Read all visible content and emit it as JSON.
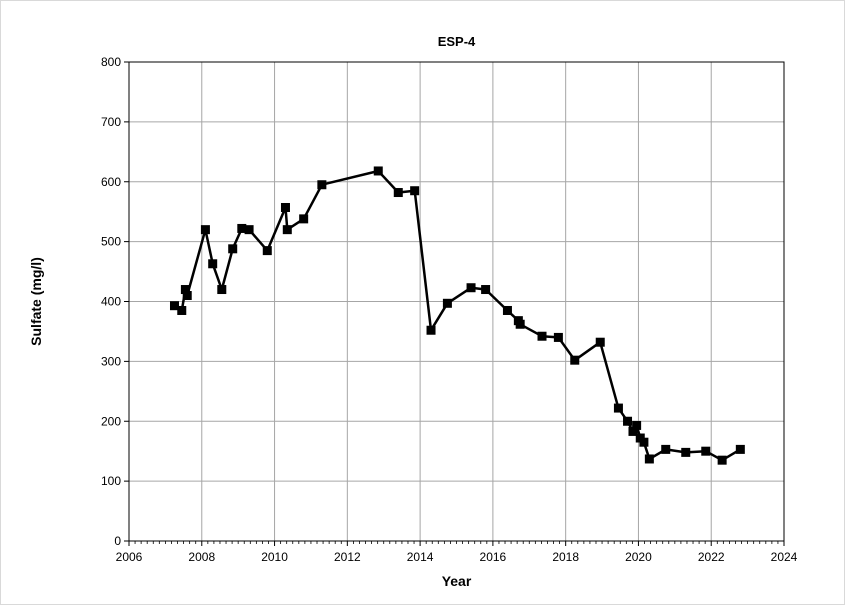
{
  "chart_data": {
    "type": "line",
    "title": "ESP-4",
    "xlabel": "Year",
    "ylabel": "Sulfate (mg/l)",
    "xlim": [
      2006,
      2024
    ],
    "ylim": [
      0,
      800
    ],
    "x_ticks": [
      "2006",
      "2008",
      "2010",
      "2012",
      "2014",
      "2016",
      "2018",
      "2020",
      "2022",
      "2024"
    ],
    "y_ticks": [
      "0",
      "100",
      "200",
      "300",
      "400",
      "500",
      "600",
      "700",
      "800"
    ],
    "grid": true,
    "legend": "none",
    "colors": {
      "line": "#000000",
      "marker": "#000000",
      "grid": "#a6a6a6",
      "axis": "#000000"
    },
    "series": [
      {
        "points": [
          [
            2007.25,
            393
          ],
          [
            2007.45,
            385
          ],
          [
            2007.55,
            420
          ],
          [
            2007.6,
            410
          ],
          [
            2008.1,
            520
          ],
          [
            2008.3,
            463
          ],
          [
            2008.55,
            420
          ],
          [
            2008.85,
            488
          ],
          [
            2009.1,
            522
          ],
          [
            2009.3,
            520
          ],
          [
            2009.8,
            485
          ],
          [
            2010.3,
            557
          ],
          [
            2010.35,
            520
          ],
          [
            2010.8,
            538
          ],
          [
            2011.3,
            595
          ],
          [
            2012.85,
            618
          ],
          [
            2013.4,
            582
          ],
          [
            2013.85,
            585
          ],
          [
            2014.3,
            352
          ],
          [
            2014.75,
            397
          ],
          [
            2015.4,
            423
          ],
          [
            2015.8,
            420
          ],
          [
            2016.4,
            385
          ],
          [
            2016.7,
            368
          ],
          [
            2016.75,
            362
          ],
          [
            2017.35,
            342
          ],
          [
            2017.8,
            340
          ],
          [
            2018.25,
            302
          ],
          [
            2018.95,
            332
          ],
          [
            2019.45,
            222
          ],
          [
            2019.7,
            200
          ],
          [
            2019.85,
            183
          ],
          [
            2019.95,
            193
          ],
          [
            2020.05,
            172
          ],
          [
            2020.15,
            165
          ],
          [
            2020.3,
            137
          ],
          [
            2020.75,
            153
          ],
          [
            2021.3,
            148
          ],
          [
            2021.85,
            150
          ],
          [
            2022.3,
            135
          ],
          [
            2022.8,
            153
          ]
        ]
      }
    ]
  }
}
